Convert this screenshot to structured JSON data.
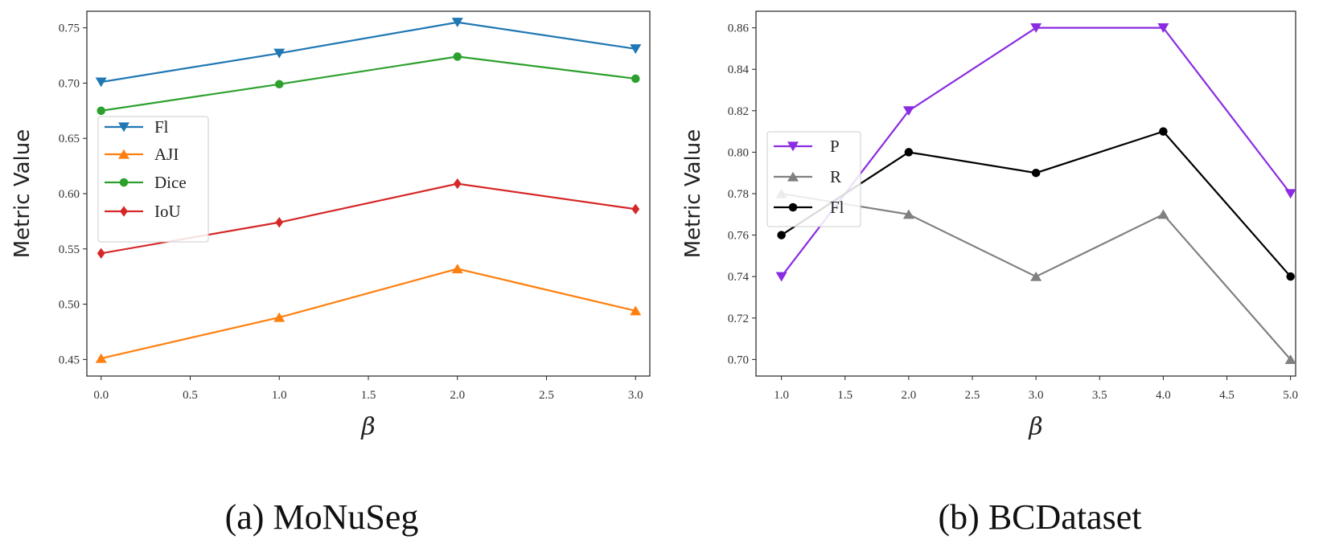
{
  "chart_data": [
    {
      "type": "line",
      "caption": "(a) MoNuSeg",
      "xlabel": "β",
      "ylabel": "Metric Value",
      "x": [
        0.0,
        1.0,
        2.0,
        3.0
      ],
      "xlim": [
        -0.08,
        3.08
      ],
      "ylim": [
        0.435,
        0.765
      ],
      "xticks": [
        0.0,
        0.5,
        1.0,
        1.5,
        2.0,
        2.5,
        3.0
      ],
      "xtick_labels": [
        "0.0",
        "0.5",
        "1.0",
        "1.5",
        "2.0",
        "2.5",
        "3.0"
      ],
      "yticks": [
        0.45,
        0.5,
        0.55,
        0.6,
        0.65,
        0.7,
        0.75
      ],
      "ytick_labels": [
        "0.45",
        "0.50",
        "0.55",
        "0.60",
        "0.65",
        "0.70",
        "0.75"
      ],
      "legend_position": "center-left",
      "series": [
        {
          "name": "Fl",
          "color": "#1f77b4",
          "marker": "triangle-down",
          "values": [
            0.701,
            0.727,
            0.755,
            0.731
          ]
        },
        {
          "name": "AJI",
          "color": "#ff7f0e",
          "marker": "triangle-up",
          "values": [
            0.451,
            0.488,
            0.532,
            0.494
          ]
        },
        {
          "name": "Dice",
          "color": "#2ca02c",
          "marker": "circle",
          "values": [
            0.675,
            0.699,
            0.724,
            0.704
          ]
        },
        {
          "name": "IoU",
          "color": "#d62728",
          "marker": "diamond",
          "values": [
            0.546,
            0.574,
            0.609,
            0.586
          ]
        }
      ]
    },
    {
      "type": "line",
      "caption": "(b) BCDataset",
      "xlabel": "β",
      "ylabel": "Metric Value",
      "x": [
        1.0,
        2.0,
        3.0,
        4.0,
        5.0
      ],
      "xlim": [
        0.8,
        5.04
      ],
      "ylim": [
        0.692,
        0.868
      ],
      "xticks": [
        1.0,
        1.5,
        2.0,
        2.5,
        3.0,
        3.5,
        4.0,
        4.5,
        5.0
      ],
      "xtick_labels": [
        "1.0",
        "1.5",
        "2.0",
        "2.5",
        "3.0",
        "3.5",
        "4.0",
        "4.5",
        "5.0"
      ],
      "yticks": [
        0.7,
        0.72,
        0.74,
        0.76,
        0.78,
        0.8,
        0.82,
        0.84,
        0.86
      ],
      "ytick_labels": [
        "0.70",
        "0.72",
        "0.74",
        "0.76",
        "0.78",
        "0.80",
        "0.82",
        "0.84",
        "0.86"
      ],
      "legend_position": "center-left",
      "series": [
        {
          "name": "P",
          "color": "#8a2be2",
          "marker": "triangle-down",
          "values": [
            0.74,
            0.82,
            0.86,
            0.86,
            0.78
          ]
        },
        {
          "name": "R",
          "color": "#808080",
          "marker": "triangle-up",
          "values": [
            0.78,
            0.77,
            0.74,
            0.77,
            0.7
          ]
        },
        {
          "name": "Fl",
          "color": "#000000",
          "marker": "circle",
          "values": [
            0.76,
            0.8,
            0.79,
            0.81,
            0.74
          ]
        }
      ]
    }
  ]
}
